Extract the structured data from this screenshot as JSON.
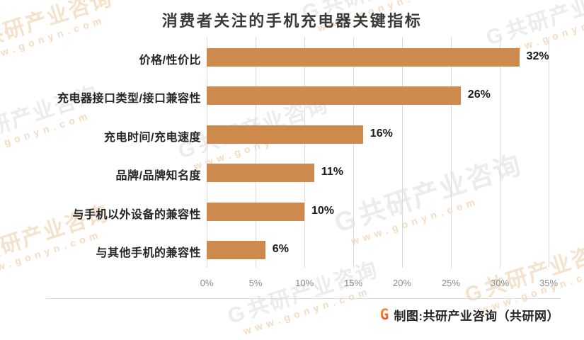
{
  "chart_data": {
    "type": "bar",
    "orientation": "horizontal",
    "title": "消费者关注的手机充电器关键指标",
    "categories": [
      "价格/性价比",
      "充电器接口类型/接口兼容性",
      "充电时间/充电速度",
      "品牌/品牌知名度",
      "与手机以外设备的兼容性",
      "与其他手机的兼容性"
    ],
    "values": [
      32,
      26,
      16,
      11,
      10,
      6
    ],
    "value_labels": [
      "32%",
      "26%",
      "16%",
      "11%",
      "10%",
      "6%"
    ],
    "x_ticks": [
      "0%",
      "5%",
      "10%",
      "15%",
      "20%",
      "25%",
      "30%",
      "35%"
    ],
    "xlim": [
      0,
      35
    ],
    "xlabel": "",
    "ylabel": "",
    "grid": true,
    "legend": "none"
  },
  "colors": {
    "bar": "#CE8A4D",
    "gridline": "#D9D9D9",
    "separator": "#DADADA",
    "title_text": "#3A3A3A",
    "category_text": "#262626",
    "value_text": "#1A1A1A",
    "tick_text": "#8A8A8A",
    "logo_orange": "#F0581F",
    "watermark_gray": "#ECECEC",
    "watermark_peach": "#F5E2CC",
    "watermark_url": "#F3DCC2"
  },
  "watermark": {
    "logo": "G",
    "brand": "共研产业咨询",
    "url": "www.gonyn.com"
  },
  "footer": {
    "logo": "G",
    "credit": "制图:共研产业咨询（共研网）"
  }
}
